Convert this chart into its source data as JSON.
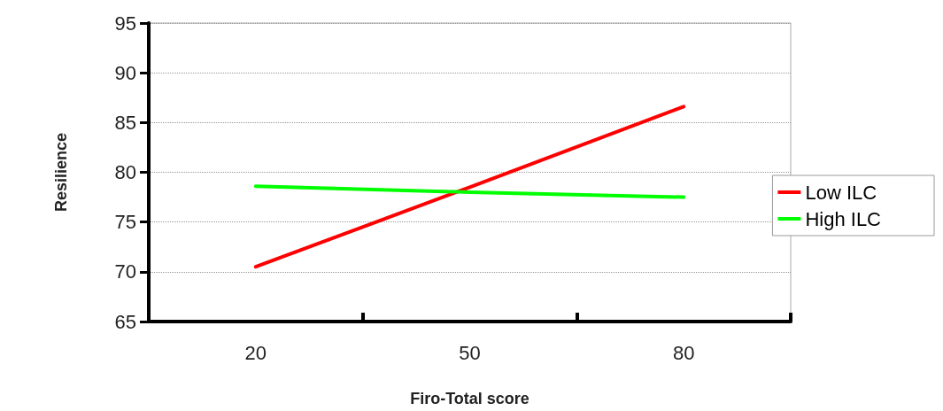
{
  "chart_data": {
    "type": "line",
    "xlabel": "Firo-Total score",
    "ylabel": "Resilience",
    "categories": [
      "20",
      "50",
      "80"
    ],
    "series": [
      {
        "name": "Low ILC",
        "color": "#ff0000",
        "values": [
          70.5,
          78.5,
          86.6
        ]
      },
      {
        "name": "High ILC",
        "color": "#00ff00",
        "values": [
          78.6,
          78.0,
          77.5
        ]
      }
    ],
    "ylim": [
      65,
      95
    ],
    "yticks": [
      65,
      70,
      75,
      80,
      85,
      90,
      95
    ],
    "grid": "y",
    "legend": "right",
    "marker": "none",
    "line_style": "solid"
  }
}
